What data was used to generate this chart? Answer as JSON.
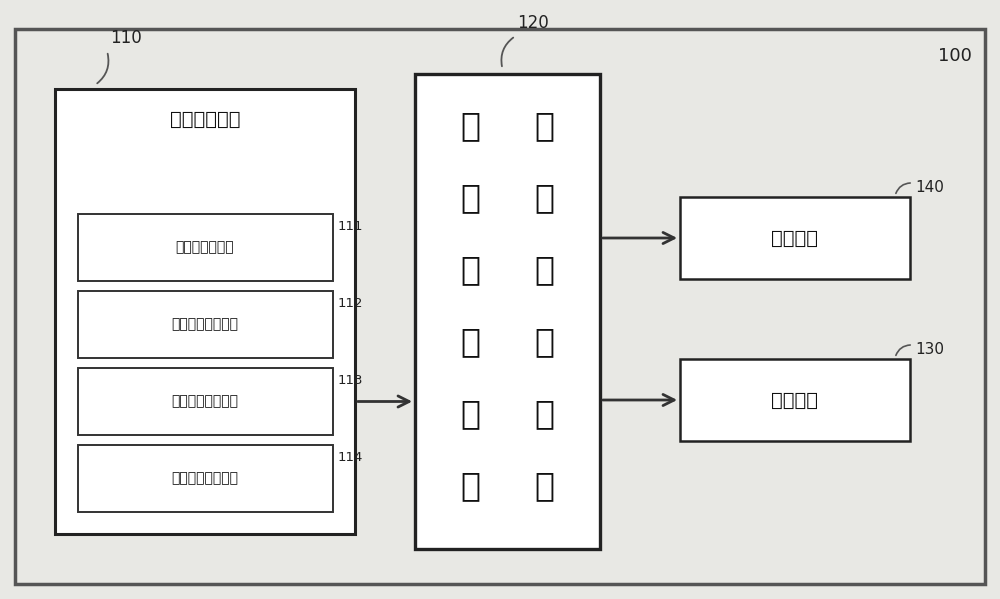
{
  "bg_color": "#e8e8e4",
  "inner_bg_color": "#e8e8e4",
  "outer_border_color": "#555555",
  "box_facecolor": "#ffffff",
  "box_edge_color": "#333333",
  "text_color": "#111111",
  "label_color": "#222222",
  "arrow_color": "#333333",
  "main_label": "100",
  "block110_label": "110",
  "block120_label": "120",
  "block130_label": "130",
  "block140_label": "140",
  "block110_title": "语音识别模块",
  "block120_chars": [
    "具",
    "能",
    "有",
    "的",
    "其",
    "微",
    "主",
    "控",
    "要",
    "制",
    "功",
    "器"
  ],
  "block130_text": "语音模块",
  "block140_text": "视频接口",
  "sub111_label": "111",
  "sub112_label": "112",
  "sub113_label": "113",
  "sub114_label": "114",
  "sub111_text": "语音数据存储器",
  "sub112_text": "语音特征训练接口",
  "sub113_text": "识别结果输出接口",
  "sub114_text": "音频输入输出接口"
}
